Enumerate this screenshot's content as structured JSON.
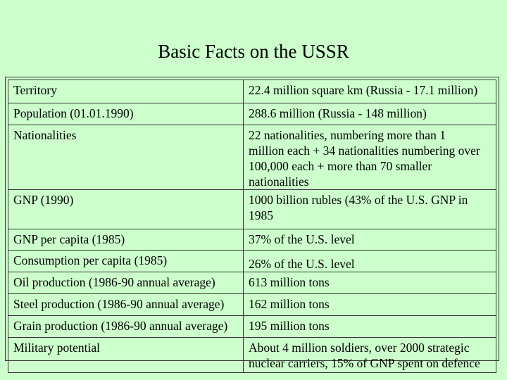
{
  "header": {
    "title": "Basic Facts on the USSR"
  },
  "table": {
    "rows": [
      [
        "Territory",
        "22.4 million square km (Russia - 17.1 million)"
      ],
      [
        "Population (01.01.1990)",
        "288.6 million (Russia - 148 million)"
      ],
      [
        "Nationalities",
        "22 nationalities, numbering more than 1 million each + 34 nationalities numbering over 100,000 each + more than 70 smaller nationalities"
      ],
      [
        "GNP (1990)",
        "1000 billion rubles (43% of the U.S. GNP in 1985"
      ],
      [
        "GNP per capita (1985)",
        "37% of the U.S. level"
      ],
      [
        "Consumption per capita (1985)",
        "26% of the U.S. level"
      ],
      [
        "Oil production (1986-90 annual average)",
        "613 million tons"
      ],
      [
        "Steel production (1986-90 annual average)",
        "162 million tons"
      ],
      [
        "Grain production (1986-90 annual average)",
        "195 million tons"
      ],
      [
        "Military potential",
        "About 4 million soldiers, over 2000 strategic nuclear carriers, 15% of GNP spent on defence"
      ]
    ]
  }
}
